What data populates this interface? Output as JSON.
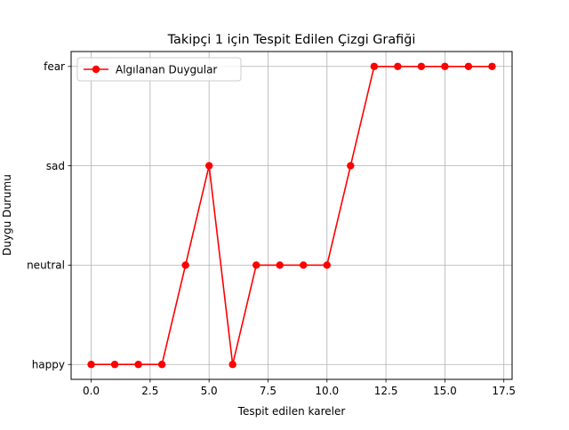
{
  "chart_data": {
    "type": "line",
    "title": "Takipçi 1 için Tespit Edilen Çizgi Grafiği",
    "xlabel": "Tespit edilen kareler",
    "ylabel": "Duygu Durumu",
    "xlim": [
      -0.85,
      17.85
    ],
    "ylim": [
      -0.15,
      3.15
    ],
    "x_ticks": [
      0.0,
      2.5,
      5.0,
      7.5,
      10.0,
      12.5,
      15.0,
      17.5
    ],
    "x_tick_labels": [
      "0.0",
      "2.5",
      "5.0",
      "7.5",
      "10.0",
      "12.5",
      "15.0",
      "17.5"
    ],
    "y_categories": [
      "happy",
      "neutral",
      "sad",
      "fear"
    ],
    "grid": true,
    "legend_position": "upper-left",
    "x": [
      0,
      1,
      2,
      3,
      4,
      5,
      6,
      7,
      8,
      9,
      10,
      11,
      12,
      13,
      14,
      15,
      16,
      17
    ],
    "series": [
      {
        "name": "Algılanan Duygular",
        "color": "#ff0000",
        "marker": "circle",
        "values": [
          "happy",
          "happy",
          "happy",
          "happy",
          "neutral",
          "sad",
          "happy",
          "neutral",
          "neutral",
          "neutral",
          "neutral",
          "sad",
          "fear",
          "fear",
          "fear",
          "fear",
          "fear",
          "fear"
        ]
      }
    ]
  }
}
